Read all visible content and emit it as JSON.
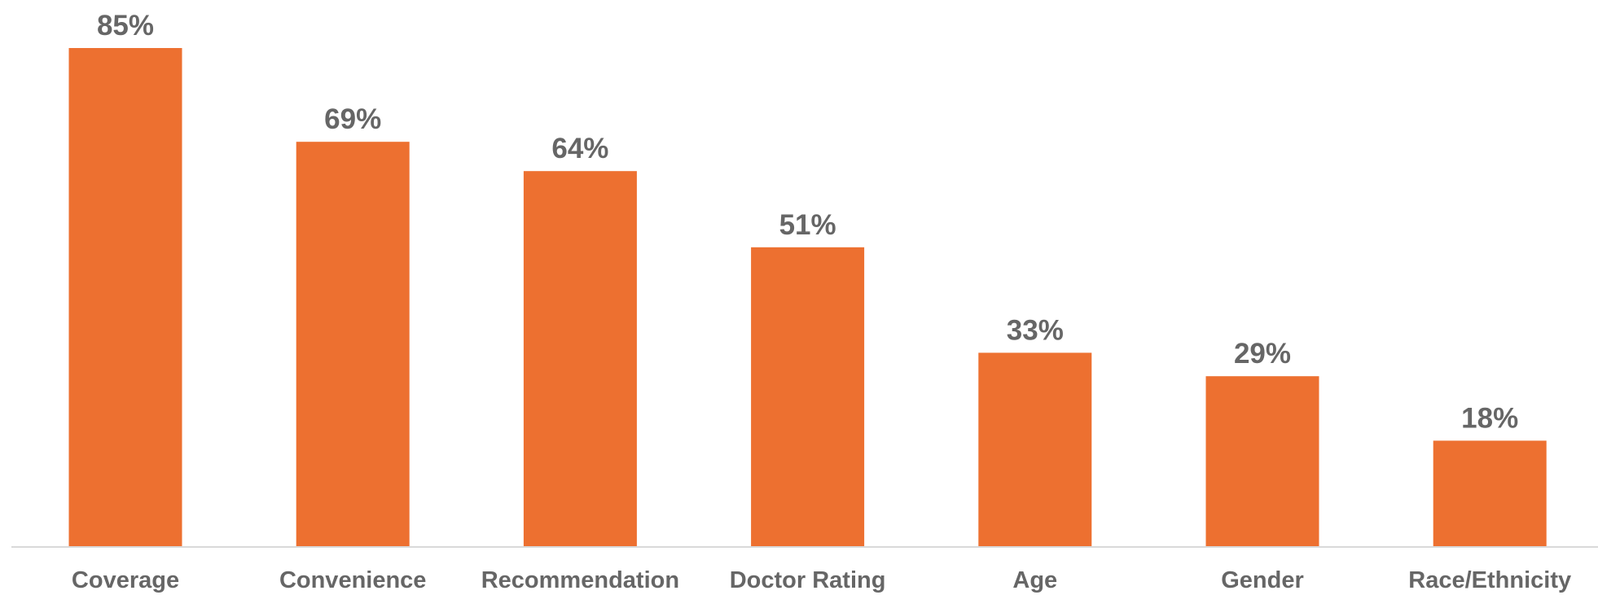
{
  "chart_data": {
    "type": "bar",
    "categories": [
      "Coverage",
      "Convenience",
      "Recommendation",
      "Doctor Rating",
      "Age",
      "Gender",
      "Race/Ethnicity"
    ],
    "values": [
      85,
      69,
      64,
      51,
      33,
      29,
      18
    ],
    "value_labels": [
      "85%",
      "69%",
      "64%",
      "51%",
      "33%",
      "29%",
      "18%"
    ],
    "title": "",
    "xlabel": "",
    "ylabel": "",
    "ylim": [
      0,
      85
    ],
    "grid": false,
    "legend": "none",
    "colors": {
      "bar": "#ED7030",
      "text": "#666666",
      "axis": "#D9D9D9"
    }
  }
}
